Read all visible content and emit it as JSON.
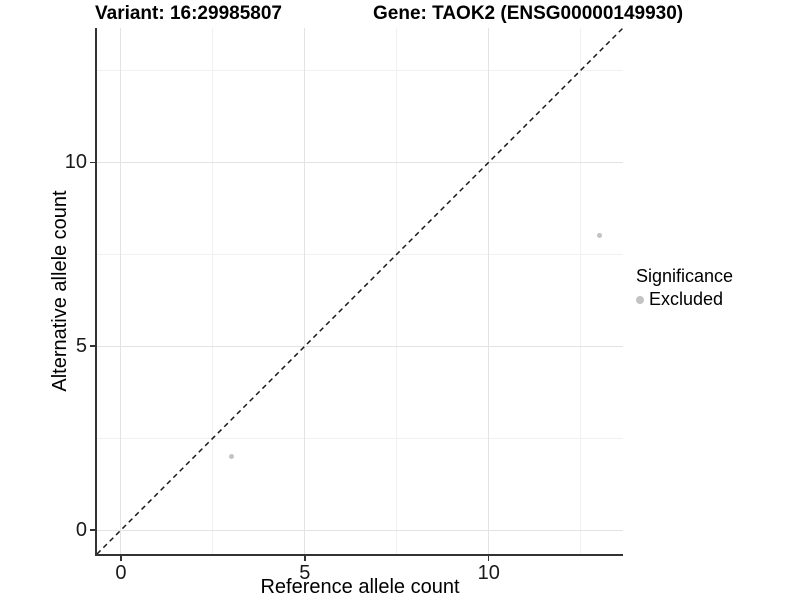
{
  "chart_data": {
    "type": "scatter",
    "title_variant": "Variant: 16:29985807",
    "title_gene": "Gene: TAOK2 (ENSG00000149930)",
    "xlabel": "Reference allele count",
    "ylabel": "Alternative allele count",
    "xlim": [
      -0.65,
      13.65
    ],
    "ylim": [
      -0.65,
      13.65
    ],
    "x_ticks": [
      0,
      5,
      10
    ],
    "y_ticks": [
      0,
      5,
      10
    ],
    "x_minor_ticks": [
      2.5,
      7.5,
      12.5
    ],
    "y_minor_ticks": [
      2.5,
      7.5,
      12.5
    ],
    "grid": true,
    "points": [
      {
        "x": 3,
        "y": 2,
        "significance": "Excluded"
      },
      {
        "x": 13,
        "y": 8,
        "significance": "Excluded"
      }
    ],
    "identity_line": {
      "equation": "y = x",
      "style": "dashed",
      "color": "#1a1a1a"
    },
    "legend": {
      "title": "Significance",
      "position": "right",
      "items": [
        {
          "label": "Excluded",
          "color": "#c3c3c3"
        }
      ]
    },
    "colors": {
      "point": "#c3c3c3",
      "grid_major": "#e3e3e3",
      "grid_minor": "#f0f0f0",
      "axis": "#333333",
      "tick_label": "#1a1a1a"
    }
  }
}
